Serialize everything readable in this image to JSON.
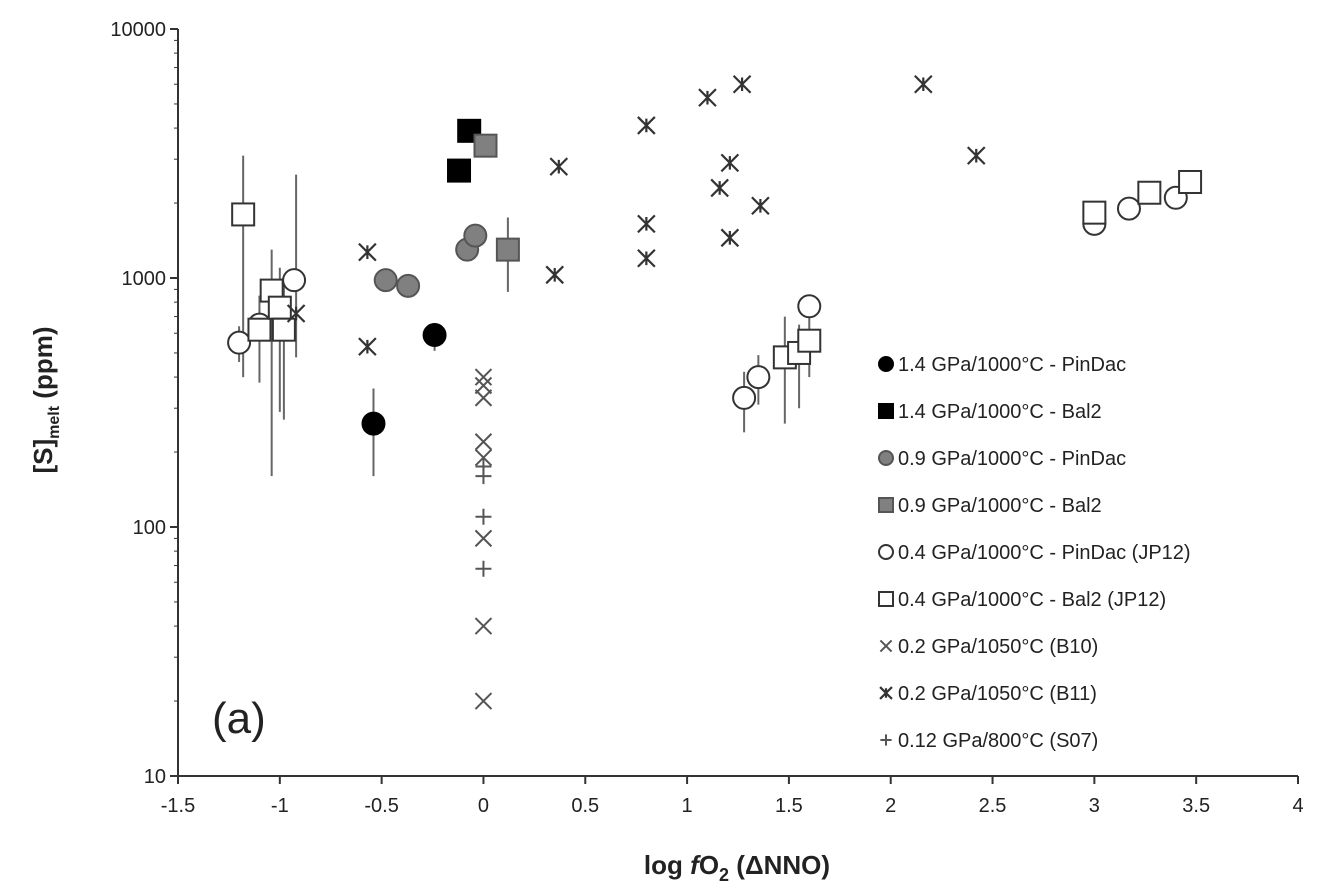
{
  "chart_data": {
    "type": "scatter",
    "panel_label": "(a)",
    "xlabel": "log fO2 (ΔNNO)",
    "ylabel": "[S]melt (ppm)",
    "xlim": [
      -1.5,
      4
    ],
    "ylim": [
      10,
      10000
    ],
    "yscale": "log",
    "x_ticks": [
      "-1.5",
      "-1",
      "-0.5",
      "0",
      "0.5",
      "1",
      "1.5",
      "2",
      "2.5",
      "3",
      "3.5",
      "4"
    ],
    "y_ticks": [
      "10",
      "100",
      "1000",
      "10000"
    ],
    "grid": false,
    "legend_position": "right",
    "series": [
      {
        "name": "1.4 GPa/1000°C - PinDac",
        "marker": "circle",
        "fill": "#000000",
        "stroke": "#000000",
        "points": [
          {
            "x": -0.54,
            "y": 260,
            "err": [
              160,
              360
            ]
          },
          {
            "x": -0.24,
            "y": 590,
            "err": [
              510,
              660
            ]
          }
        ]
      },
      {
        "name": "1.4 GPa/1000°C - Bal2",
        "marker": "square",
        "fill": "#000000",
        "stroke": "#000000",
        "points": [
          {
            "x": -0.12,
            "y": 2700
          },
          {
            "x": -0.07,
            "y": 3900
          }
        ]
      },
      {
        "name": "0.9 GPa/1000°C - PinDac",
        "marker": "circle",
        "fill": "#808080",
        "stroke": "#555555",
        "points": [
          {
            "x": -0.48,
            "y": 980
          },
          {
            "x": -0.37,
            "y": 930
          },
          {
            "x": -0.08,
            "y": 1300
          },
          {
            "x": -0.04,
            "y": 1480
          }
        ]
      },
      {
        "name": "0.9 GPa/1000°C - Bal2",
        "marker": "square",
        "fill": "#808080",
        "stroke": "#555555",
        "points": [
          {
            "x": 0.01,
            "y": 3400
          },
          {
            "x": 0.12,
            "y": 1300,
            "err": [
              880,
              1750
            ]
          }
        ]
      },
      {
        "name": "0.4 GPa/1000°C - PinDac (JP12)",
        "marker": "circle",
        "fill": "#ffffff",
        "stroke": "#333333",
        "points": [
          {
            "x": -1.2,
            "y": 550,
            "err": [
              460,
              640
            ]
          },
          {
            "x": -1.1,
            "y": 650,
            "err": [
              560,
              740
            ]
          },
          {
            "x": -0.93,
            "y": 980
          },
          {
            "x": 1.28,
            "y": 330,
            "err": [
              240,
              420
            ]
          },
          {
            "x": 1.35,
            "y": 400,
            "err": [
              310,
              490
            ]
          },
          {
            "x": 1.6,
            "y": 770
          },
          {
            "x": 3.0,
            "y": 1650
          },
          {
            "x": 3.17,
            "y": 1900
          },
          {
            "x": 3.4,
            "y": 2100
          }
        ]
      },
      {
        "name": "0.4 GPa/1000°C - Bal2 (JP12)",
        "marker": "square",
        "fill": "#ffffff",
        "stroke": "#333333",
        "points": [
          {
            "x": -1.18,
            "y": 1800,
            "err": [
              400,
              3100
            ]
          },
          {
            "x": -1.1,
            "y": 620,
            "err": [
              380,
              850
            ]
          },
          {
            "x": -1.04,
            "y": 890,
            "err": [
              160,
              1300
            ]
          },
          {
            "x": -1.0,
            "y": 760,
            "err": [
              290,
              1100
            ]
          },
          {
            "x": -0.98,
            "y": 620,
            "err": [
              270,
              950
            ]
          },
          {
            "x": 1.48,
            "y": 480,
            "err": [
              260,
              700
            ]
          },
          {
            "x": 1.55,
            "y": 500,
            "err": [
              300,
              650
            ]
          },
          {
            "x": 1.6,
            "y": 560,
            "err": [
              400,
              700
            ]
          },
          {
            "x": 3.0,
            "y": 1830
          },
          {
            "x": 3.27,
            "y": 2200
          },
          {
            "x": 3.47,
            "y": 2430
          }
        ]
      },
      {
        "name": "0.2 GPa/1050°C (B10)",
        "marker": "x",
        "fill": "none",
        "stroke": "#555555",
        "points": [
          {
            "x": 0.0,
            "y": 400
          },
          {
            "x": 0.0,
            "y": 370
          },
          {
            "x": 0.0,
            "y": 330
          },
          {
            "x": 0.0,
            "y": 220
          },
          {
            "x": 0.0,
            "y": 190
          },
          {
            "x": 0.0,
            "y": 90
          },
          {
            "x": 0.0,
            "y": 40
          },
          {
            "x": 0.0,
            "y": 20
          }
        ]
      },
      {
        "name": "0.2 GPa/1050°C (B11)",
        "marker": "asterisk",
        "fill": "none",
        "stroke": "#333333",
        "points": [
          {
            "x": -0.92,
            "y": 720,
            "err": [
              480,
              2600
            ]
          },
          {
            "x": -0.57,
            "y": 530
          },
          {
            "x": -0.57,
            "y": 1270
          },
          {
            "x": 0.35,
            "y": 1030
          },
          {
            "x": 0.37,
            "y": 2800
          },
          {
            "x": 0.8,
            "y": 4100
          },
          {
            "x": 0.8,
            "y": 1650
          },
          {
            "x": 0.8,
            "y": 1200
          },
          {
            "x": 1.1,
            "y": 5300
          },
          {
            "x": 1.16,
            "y": 2300
          },
          {
            "x": 1.21,
            "y": 2900
          },
          {
            "x": 1.21,
            "y": 1450
          },
          {
            "x": 1.27,
            "y": 6000
          },
          {
            "x": 1.36,
            "y": 1950
          },
          {
            "x": 2.16,
            "y": 6000
          },
          {
            "x": 2.42,
            "y": 3100
          }
        ]
      },
      {
        "name": "0.12 GPa/800°C (S07)",
        "marker": "plus",
        "fill": "none",
        "stroke": "#555555",
        "points": [
          {
            "x": 0.0,
            "y": 175
          },
          {
            "x": 0.0,
            "y": 160
          },
          {
            "x": 0.0,
            "y": 110
          },
          {
            "x": 0.0,
            "y": 68
          }
        ]
      }
    ]
  }
}
